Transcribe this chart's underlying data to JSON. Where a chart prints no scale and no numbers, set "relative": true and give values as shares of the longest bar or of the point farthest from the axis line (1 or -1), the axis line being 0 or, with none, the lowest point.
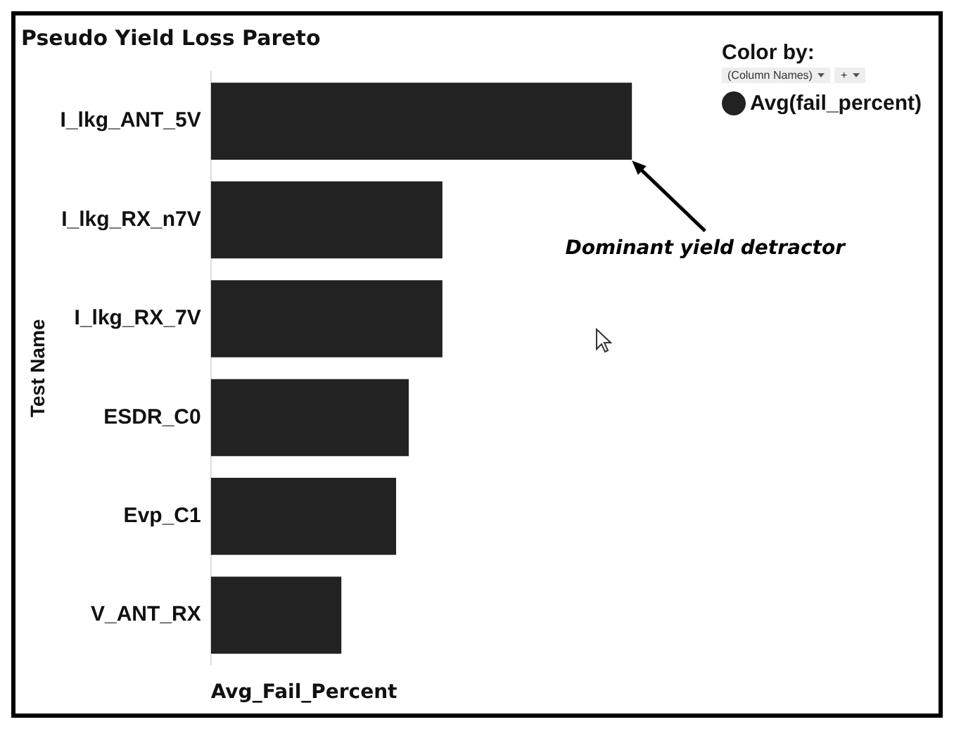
{
  "chart_data": {
    "type": "bar",
    "orientation": "horizontal",
    "relative": true,
    "title": "Pseudo Yield Loss Pareto",
    "xlabel": "Avg_Fail_Percent",
    "ylabel": "Test Name",
    "legend_title": "Color by:",
    "legend": "top right",
    "categories": [
      "I_lkg_ANT_5V",
      "I_lkg_RX_n7V",
      "I_lkg_RX_7V",
      "ESDR_C0",
      "Evp_C1",
      "V_ANT_RX"
    ],
    "series": [
      {
        "name": "Avg(fail_percent)",
        "color": "#222222",
        "values": [
          1,
          0.55,
          0.55,
          0.47,
          0.44,
          0.31
        ]
      }
    ],
    "annotations": [
      {
        "text": "Dominant yield detractor",
        "x": 1,
        "y": "I_lkg_ANT_5V"
      },
      "(Column Names)",
      "+"
    ]
  }
}
